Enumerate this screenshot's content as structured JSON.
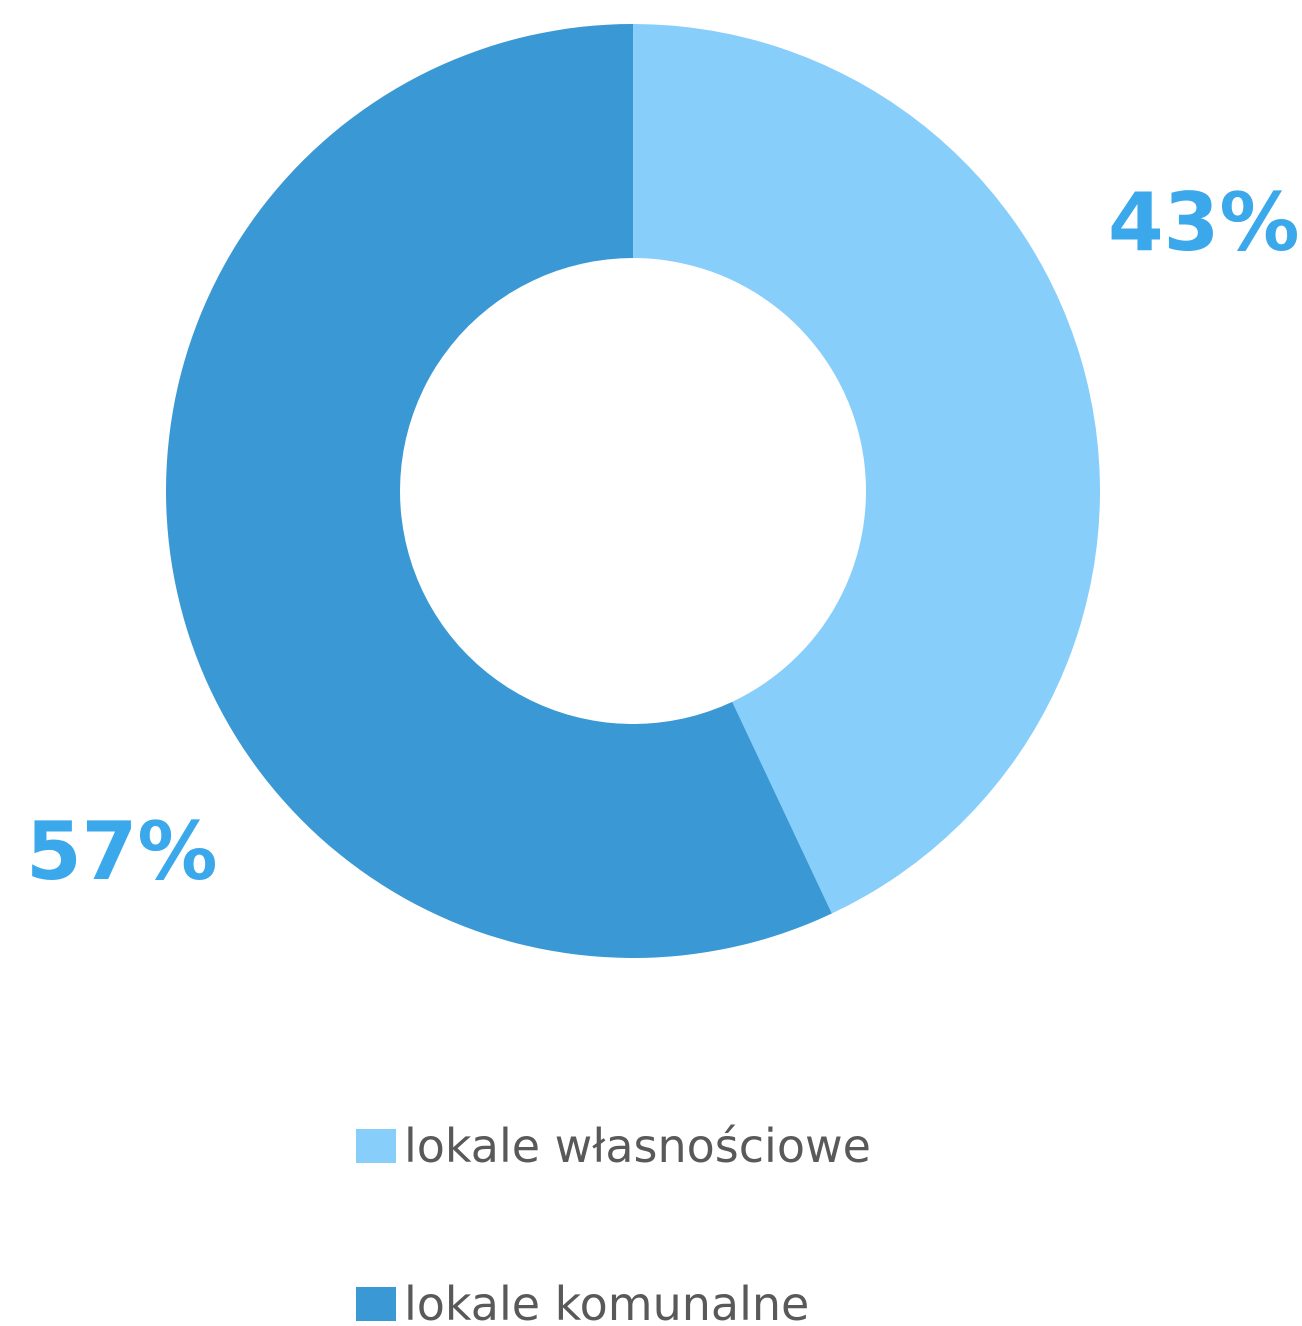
{
  "chart_data": {
    "type": "pie",
    "variant": "donut",
    "series": [
      {
        "name": "",
        "categories": [
          "lokale własnościowe",
          "lokale komunalne"
        ],
        "values": [
          43,
          57
        ]
      }
    ],
    "slices": [
      {
        "label": "lokale własnościowe",
        "value": 43,
        "display": "43%",
        "color": "#87CEFB"
      },
      {
        "label": "lokale komunalne",
        "value": 57,
        "display": "57%",
        "color": "#3A98D4"
      }
    ],
    "label_color": "#3BA8EC",
    "legend_text_color": "#595959",
    "legend_position": "bottom",
    "title": ""
  }
}
